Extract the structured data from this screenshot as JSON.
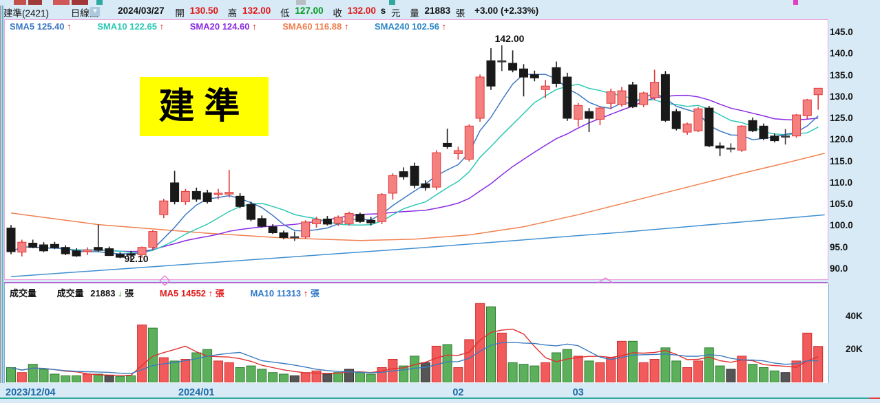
{
  "header": {
    "title": "建準(2421)",
    "period": "日線圖",
    "date": "2024/03/27",
    "open_label": "開",
    "open": "130.50",
    "high_label": "高",
    "high": "132.00",
    "low_label": "低",
    "low": "127.00",
    "close_label": "收",
    "close": "132.00",
    "close_suffix": "s",
    "unit": "元",
    "vol_label": "量",
    "volume": "21883",
    "vol_unit": "張",
    "change": "+3.00 (+2.33%)"
  },
  "sma": {
    "items": [
      {
        "label": "SMA5 125.40",
        "color": "#3c78c4"
      },
      {
        "label": "SMA10 122.65",
        "color": "#2cc8b4"
      },
      {
        "label": "SMA20 124.60",
        "color": "#8a2be2"
      },
      {
        "label": "SMA60 116.88",
        "color": "#f08050"
      },
      {
        "label": "SMA240 102.56",
        "color": "#2e86c8"
      }
    ],
    "arrow": "↑"
  },
  "badge_text": "建準",
  "annotations": {
    "peak": "142.00",
    "trough": "92.10"
  },
  "volume_header": {
    "pane_label": "成交量",
    "vol_label": "成交量",
    "vol_value": "21883",
    "vol_arrow": "↓",
    "vol_unit": "張",
    "ma5_label": "MA5 14552",
    "ma5_arrow": "↑",
    "ma5_unit": "張",
    "ma5_color": "#e01818",
    "ma10_label": "MA10 11313",
    "ma10_arrow": "↑",
    "ma10_unit": "張",
    "ma10_color": "#2e78c8"
  },
  "price_axis": [
    "145.0",
    "140.0",
    "135.0",
    "130.0",
    "125.0",
    "120.0",
    "115.0",
    "110.0",
    "105.0",
    "100.0",
    "95.0",
    "90.0"
  ],
  "volume_axis": [
    "40K",
    "20K"
  ],
  "x_axis": [
    {
      "label": "2023/12/04",
      "i": 0,
      "align": "left"
    },
    {
      "label": "2024/01",
      "i": 17,
      "align": "center"
    },
    {
      "label": "02",
      "i": 41,
      "align": "center"
    },
    {
      "label": "03",
      "i": 52,
      "align": "center"
    }
  ],
  "colors": {
    "up_fill": "#f58080",
    "up_stroke": "#e03838",
    "down": "#191919",
    "flat": "#3c3c3c",
    "vol_up": "#f25b5b",
    "vol_up_stroke": "#cf3030",
    "vol_down": "#5cb05c",
    "vol_down_stroke": "#2e7d32",
    "vol_flat": "#555555",
    "sma5": "#3c78c4",
    "sma10": "#2cc8b4",
    "sma20": "#8a2be2",
    "sma60": "#f08050",
    "sma240": "#3f8fd0",
    "vma5": "#e03030",
    "vma10": "#3a7bbf",
    "pane_border": "#eda6e0",
    "marker": "#e285d8"
  },
  "chart_data": {
    "type": "candlestick+volume",
    "note": "daily OHLC candles (values est. from chart), volumes in thousands of lots",
    "ylim_price": [
      90,
      145
    ],
    "ylim_volume_k": [
      0,
      48
    ],
    "candles_ohlc": [
      [
        99.5,
        100.2,
        93.4,
        94.0
      ],
      [
        93.9,
        96.8,
        92.9,
        96.2
      ],
      [
        96.0,
        96.8,
        94.8,
        95.0
      ],
      [
        95.6,
        96.2,
        93.9,
        94.2
      ],
      [
        95.7,
        96.3,
        94.6,
        94.9
      ],
      [
        95.0,
        95.5,
        93.2,
        93.5
      ],
      [
        94.2,
        94.8,
        92.8,
        93.0
      ],
      [
        94.0,
        95.0,
        93.2,
        94.4
      ],
      [
        95.0,
        100.3,
        94.0,
        94.3
      ],
      [
        94.7,
        95.2,
        93.0,
        93.1
      ],
      [
        93.4,
        93.9,
        92.5,
        92.7
      ],
      [
        93.5,
        94.2,
        92.1,
        93.2
      ],
      [
        93.3,
        95.2,
        92.6,
        95.0
      ],
      [
        95.0,
        99.0,
        94.4,
        98.7
      ],
      [
        102.6,
        106.3,
        101.8,
        105.8
      ],
      [
        110.0,
        112.8,
        105.0,
        105.6
      ],
      [
        105.6,
        108.6,
        104.9,
        108.0
      ],
      [
        108.0,
        108.9,
        105.6,
        106.2
      ],
      [
        107.7,
        108.4,
        105.2,
        105.6
      ],
      [
        107.3,
        108.6,
        106.2,
        107.6
      ],
      [
        107.4,
        113.0,
        106.6,
        107.8
      ],
      [
        106.9,
        107.6,
        104.1,
        104.5
      ],
      [
        105.0,
        105.6,
        101.1,
        101.5
      ],
      [
        101.7,
        102.4,
        99.6,
        99.9
      ],
      [
        99.8,
        100.4,
        98.1,
        98.4
      ],
      [
        98.4,
        98.9,
        96.9,
        97.3
      ],
      [
        97.5,
        98.7,
        96.5,
        97.5
      ],
      [
        97.4,
        101.3,
        97.0,
        100.9
      ],
      [
        100.5,
        102.1,
        99.6,
        101.5
      ],
      [
        101.6,
        102.3,
        100.1,
        100.4
      ],
      [
        100.6,
        102.4,
        100.0,
        102.0
      ],
      [
        100.5,
        103.3,
        100.1,
        102.9
      ],
      [
        102.7,
        103.1,
        100.7,
        101.0
      ],
      [
        101.3,
        102.1,
        100.1,
        100.7
      ],
      [
        101.0,
        107.6,
        100.4,
        107.3
      ],
      [
        107.6,
        112.2,
        106.1,
        111.7
      ],
      [
        112.6,
        113.6,
        110.7,
        111.4
      ],
      [
        113.9,
        114.7,
        108.7,
        109.4
      ],
      [
        109.8,
        110.6,
        108.2,
        108.9
      ],
      [
        109.0,
        117.6,
        108.4,
        117.0
      ],
      [
        119.2,
        122.6,
        117.9,
        118.4
      ],
      [
        116.8,
        118.4,
        115.4,
        117.5
      ],
      [
        115.5,
        123.6,
        115.0,
        123.2
      ],
      [
        125.0,
        135.2,
        124.2,
        134.6
      ],
      [
        138.4,
        141.3,
        131.6,
        132.5
      ],
      [
        138.4,
        142.0,
        136.0,
        138.4
      ],
      [
        137.8,
        140.8,
        135.7,
        136.2
      ],
      [
        136.5,
        137.6,
        130.1,
        134.6
      ],
      [
        135.2,
        136.1,
        133.6,
        134.4
      ],
      [
        131.7,
        133.9,
        129.7,
        132.5
      ],
      [
        136.8,
        138.2,
        132.2,
        133.1
      ],
      [
        134.6,
        135.6,
        124.4,
        125.0
      ],
      [
        124.8,
        128.6,
        123.1,
        128.0
      ],
      [
        126.6,
        127.4,
        121.8,
        125.0
      ],
      [
        124.8,
        127.9,
        123.4,
        127.4
      ],
      [
        128.5,
        131.9,
        127.1,
        131.2
      ],
      [
        128.2,
        132.3,
        127.7,
        131.4
      ],
      [
        132.8,
        133.5,
        127.4,
        127.7
      ],
      [
        128.2,
        131.2,
        127.6,
        130.9
      ],
      [
        129.8,
        136.3,
        129.2,
        133.4
      ],
      [
        135.2,
        136.0,
        124.2,
        124.5
      ],
      [
        126.6,
        127.2,
        122.2,
        122.6
      ],
      [
        121.8,
        124.0,
        121.2,
        123.7
      ],
      [
        122.1,
        127.6,
        121.8,
        127.2
      ],
      [
        127.4,
        127.9,
        118.3,
        118.6
      ],
      [
        118.6,
        119.4,
        116.2,
        118.1
      ],
      [
        118.1,
        119.2,
        117.1,
        118.1
      ],
      [
        117.6,
        123.4,
        117.2,
        123.2
      ],
      [
        124.5,
        125.2,
        121.8,
        122.1
      ],
      [
        123.2,
        123.8,
        119.9,
        120.3
      ],
      [
        120.9,
        121.5,
        119.4,
        119.8
      ],
      [
        120.9,
        122.5,
        118.9,
        120.9
      ],
      [
        120.9,
        126.0,
        120.5,
        125.8
      ],
      [
        125.6,
        129.5,
        124.9,
        129.3
      ],
      [
        130.5,
        132.0,
        127.0,
        132.0
      ]
    ],
    "volumes_k": [
      9,
      6,
      11,
      8,
      5,
      4,
      4,
      5,
      5,
      4,
      3.5,
      4,
      35,
      33,
      15,
      13,
      14,
      18,
      20,
      13,
      12,
      9,
      10,
      8,
      6,
      5,
      4,
      6,
      7,
      5,
      6,
      8,
      6,
      5,
      9,
      14,
      10,
      16,
      12,
      22,
      23,
      9,
      26,
      48,
      46,
      30,
      12,
      11,
      10,
      12,
      18,
      20,
      16,
      13,
      12,
      15,
      25,
      25,
      12,
      14,
      21,
      13,
      9,
      13,
      21,
      10,
      8,
      16,
      11,
      9,
      7,
      6,
      13,
      30,
      21.9
    ],
    "volume_color_overrides": {
      "9": "n",
      "13": "d",
      "26": "n",
      "29": "n",
      "30": "d",
      "31": "n",
      "38": "n",
      "45": "u",
      "66": "n",
      "71": "n"
    },
    "sma_windows": [
      5,
      10,
      20
    ],
    "sma60_points": [
      [
        0,
        103.0
      ],
      [
        8,
        100.3
      ],
      [
        18,
        98.3
      ],
      [
        25,
        97.2
      ],
      [
        32,
        96.6
      ],
      [
        37,
        96.9
      ],
      [
        42,
        97.9
      ],
      [
        47,
        99.8
      ],
      [
        52,
        102.6
      ],
      [
        57,
        105.8
      ],
      [
        62,
        109.0
      ],
      [
        67,
        112.2
      ],
      [
        71,
        114.6
      ],
      [
        74.6,
        116.88
      ]
    ],
    "sma240_points": [
      [
        0,
        88.2
      ],
      [
        18,
        91.4
      ],
      [
        37,
        94.8
      ],
      [
        56,
        98.5
      ],
      [
        74.6,
        102.56
      ]
    ],
    "marker_bump_x_index": 54.5,
    "marker_diamond_x_index": 14.1
  }
}
